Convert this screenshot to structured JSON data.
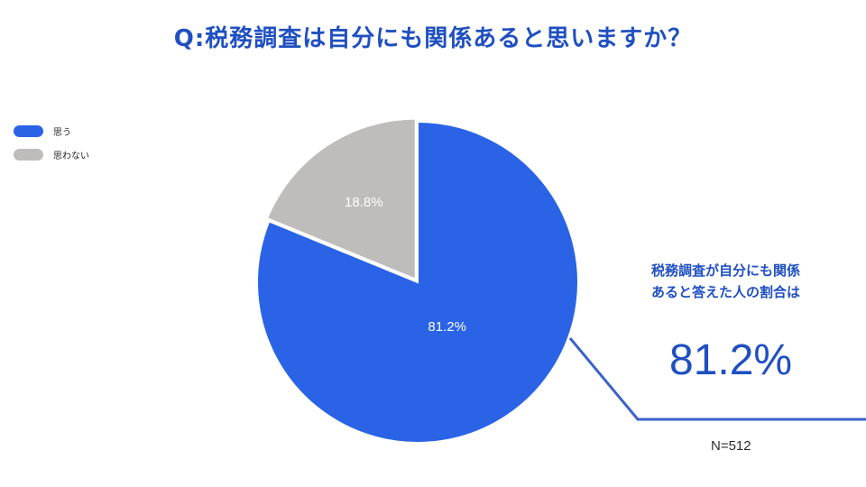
{
  "title": "Q:税務調査は自分にも関係あると思いますか？",
  "chart_data": {
    "type": "pie",
    "categories": [
      "思う",
      "思わない"
    ],
    "values": [
      81.2,
      18.8
    ],
    "labels": [
      "81.2%",
      "18.8%"
    ],
    "colors": [
      "#2a63e6",
      "#bfbcbc"
    ],
    "legend_position": "top-left"
  },
  "callout": {
    "lines": [
      "税務調査が自分にも関係",
      "あると答えた人の割合は"
    ],
    "value": "81.2%",
    "accent_color": "#3a62c8"
  },
  "sample_size": "N=512"
}
